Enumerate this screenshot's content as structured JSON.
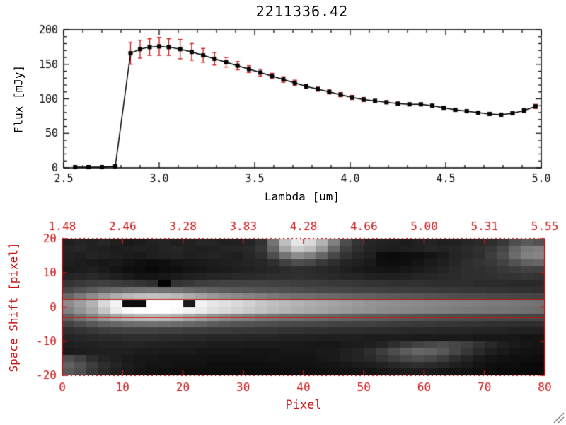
{
  "window": {
    "background": "#ffffff"
  },
  "colors": {
    "foreground": "#000000",
    "accent_red": "#cc1515",
    "grip_gray": "#8a8a8a"
  },
  "title": "2211336.42",
  "chart_data": [
    {
      "type": "line",
      "title": "2211336.42",
      "xlabel": "Lambda [um]",
      "ylabel": "Flux [mJy]",
      "xlim": [
        2.5,
        5.0
      ],
      "ylim": [
        0,
        200
      ],
      "xticks": [
        2.5,
        3.0,
        3.5,
        4.0,
        4.5,
        5.0
      ],
      "xtick_labels": [
        "2.5",
        "3.0",
        "3.5",
        "4.0",
        "4.5",
        "5.0"
      ],
      "xminor": 5,
      "yticks": [
        0,
        50,
        100,
        150,
        200
      ],
      "ytick_labels": [
        "0",
        "50",
        "100",
        "150",
        "200"
      ],
      "yminor": 5,
      "grid": false,
      "marker": "filled-square",
      "line_color": "#000000",
      "marker_color": "#000000",
      "error_color": "#cc1515",
      "x": [
        2.56,
        2.63,
        2.7,
        2.77,
        2.85,
        2.9,
        2.95,
        3.0,
        3.05,
        3.11,
        3.17,
        3.23,
        3.29,
        3.35,
        3.41,
        3.47,
        3.53,
        3.59,
        3.65,
        3.71,
        3.77,
        3.83,
        3.89,
        3.95,
        4.01,
        4.07,
        4.13,
        4.19,
        4.25,
        4.31,
        4.37,
        4.43,
        4.49,
        4.55,
        4.61,
        4.67,
        4.73,
        4.79,
        4.85,
        4.91,
        4.97
      ],
      "y": [
        1,
        1,
        1,
        2,
        166,
        172,
        175,
        176,
        175,
        172,
        168,
        163,
        158,
        153,
        148,
        143,
        138,
        133,
        128,
        123,
        118,
        114,
        110,
        106,
        102,
        99,
        97,
        95,
        93,
        92,
        92,
        90,
        87,
        84,
        82,
        80,
        78,
        77,
        79,
        83,
        89
      ],
      "yerr": [
        2,
        2,
        2,
        2,
        16,
        13,
        12,
        13,
        12,
        14,
        12,
        10,
        9,
        7,
        6,
        5,
        5,
        4,
        4,
        4,
        3,
        3,
        3,
        3,
        3,
        3,
        2,
        2,
        2,
        2,
        2,
        2,
        2,
        2,
        2,
        2,
        2,
        2,
        2,
        3,
        3
      ]
    },
    {
      "type": "heatmap",
      "xlabel": "Pixel",
      "ylabel": "Space Shift [pixel]",
      "xlim": [
        0,
        80
      ],
      "ylim": [
        -20,
        20
      ],
      "xticks": [
        0,
        10,
        20,
        30,
        40,
        50,
        60,
        70,
        80
      ],
      "xtick_labels": [
        "0",
        "10",
        "20",
        "30",
        "40",
        "50",
        "60",
        "70",
        "80"
      ],
      "yticks": [
        -20,
        -10,
        0,
        10,
        20
      ],
      "ytick_labels": [
        "-20",
        "-10",
        "0",
        "10",
        "20"
      ],
      "top_axis_labels": [
        "1.48",
        "2.46",
        "3.28",
        "3.83",
        "4.28",
        "4.66",
        "5.00",
        "5.31",
        "5.55"
      ],
      "axis_color": "#cc1515",
      "aperture_lines_y": [
        2.2,
        -3.0
      ],
      "palette": "grayscale",
      "value_range": [
        0,
        100
      ],
      "image_rows": 20,
      "image_cols": 40,
      "image": [
        [
          12,
          14,
          13,
          15,
          12,
          10,
          11,
          13,
          14,
          12,
          13,
          15,
          14,
          12,
          13,
          14,
          20,
          45,
          75,
          90,
          85,
          70,
          50,
          30,
          20,
          15,
          13,
          12,
          11,
          13,
          14,
          12,
          13,
          15,
          16,
          18,
          22,
          30,
          35,
          32
        ],
        [
          14,
          15,
          13,
          12,
          11,
          12,
          13,
          12,
          14,
          15,
          13,
          12,
          13,
          14,
          15,
          16,
          22,
          40,
          65,
          80,
          75,
          60,
          40,
          25,
          18,
          14,
          12,
          11,
          12,
          13,
          15,
          14,
          15,
          17,
          19,
          22,
          28,
          40,
          48,
          50
        ],
        [
          13,
          12,
          14,
          13,
          12,
          11,
          10,
          12,
          13,
          14,
          12,
          13,
          14,
          13,
          12,
          15,
          18,
          30,
          45,
          55,
          50,
          40,
          28,
          20,
          15,
          12,
          5,
          4,
          5,
          6,
          8,
          10,
          14,
          16,
          18,
          24,
          30,
          42,
          50,
          52
        ],
        [
          12,
          11,
          10,
          9,
          10,
          8,
          6,
          5,
          6,
          8,
          9,
          10,
          11,
          12,
          13,
          14,
          15,
          18,
          25,
          30,
          28,
          22,
          18,
          14,
          12,
          10,
          6,
          5,
          6,
          8,
          10,
          12,
          15,
          18,
          20,
          22,
          26,
          32,
          38,
          40
        ],
        [
          10,
          11,
          12,
          10,
          8,
          6,
          5,
          4,
          5,
          6,
          8,
          9,
          10,
          11,
          12,
          13,
          14,
          15,
          17,
          18,
          17,
          16,
          14,
          12,
          10,
          9,
          8,
          8,
          9,
          10,
          12,
          14,
          16,
          18,
          19,
          20,
          22,
          24,
          26,
          25
        ],
        [
          14,
          15,
          16,
          14,
          12,
          10,
          8,
          8,
          9,
          10,
          12,
          13,
          14,
          15,
          16,
          16,
          17,
          18,
          18,
          19,
          18,
          17,
          16,
          15,
          14,
          13,
          12,
          12,
          13,
          14,
          15,
          16,
          17,
          18,
          18,
          19,
          20,
          20,
          21,
          20
        ],
        [
          20,
          22,
          24,
          25,
          24,
          22,
          20,
          18,
          0,
          20,
          22,
          24,
          25,
          26,
          26,
          26,
          26,
          25,
          25,
          24,
          24,
          23,
          22,
          22,
          21,
          20,
          20,
          19,
          19,
          19,
          18,
          18,
          18,
          18,
          17,
          17,
          17,
          16,
          16,
          16
        ],
        [
          28,
          32,
          36,
          40,
          42,
          44,
          45,
          46,
          45,
          44,
          42,
          40,
          38,
          36,
          35,
          34,
          33,
          32,
          31,
          30,
          29,
          28,
          28,
          27,
          26,
          26,
          25,
          24,
          24,
          23,
          23,
          22,
          22,
          21,
          21,
          20,
          20,
          19,
          19,
          18
        ],
        [
          40,
          48,
          55,
          62,
          68,
          72,
          75,
          76,
          75,
          72,
          68,
          64,
          60,
          57,
          54,
          52,
          50,
          48,
          46,
          44,
          43,
          42,
          41,
          40,
          39,
          38,
          37,
          36,
          35,
          34,
          33,
          32,
          31,
          30,
          30,
          29,
          29,
          28,
          28,
          27
        ],
        [
          55,
          62,
          70,
          85,
          95,
          5,
          5,
          100,
          100,
          100,
          10,
          95,
          90,
          88,
          85,
          82,
          78,
          75,
          72,
          70,
          68,
          66,
          64,
          62,
          60,
          58,
          57,
          56,
          55,
          54,
          53,
          52,
          51,
          50,
          49,
          48,
          48,
          47,
          46,
          45
        ],
        [
          50,
          58,
          66,
          78,
          92,
          98,
          100,
          100,
          100,
          98,
          95,
          92,
          88,
          85,
          82,
          79,
          76,
          73,
          70,
          68,
          66,
          64,
          62,
          60,
          58,
          57,
          55,
          54,
          53,
          52,
          51,
          50,
          49,
          48,
          47,
          46,
          46,
          45,
          44,
          43
        ],
        [
          38,
          45,
          52,
          60,
          66,
          70,
          73,
          74,
          73,
          70,
          66,
          62,
          58,
          55,
          52,
          50,
          48,
          46,
          44,
          43,
          42,
          41,
          40,
          39,
          38,
          37,
          36,
          35,
          34,
          33,
          32,
          31,
          30,
          30,
          29,
          29,
          28,
          28,
          27,
          27
        ],
        [
          26,
          30,
          34,
          38,
          40,
          42,
          43,
          44,
          43,
          42,
          40,
          38,
          36,
          34,
          33,
          32,
          31,
          30,
          29,
          28,
          28,
          27,
          26,
          26,
          25,
          25,
          24,
          23,
          23,
          22,
          22,
          21,
          21,
          20,
          20,
          19,
          19,
          18,
          18,
          18
        ],
        [
          18,
          20,
          22,
          24,
          25,
          26,
          26,
          26,
          25,
          25,
          24,
          24,
          23,
          23,
          22,
          22,
          21,
          21,
          20,
          20,
          19,
          19,
          18,
          18,
          18,
          17,
          17,
          17,
          16,
          16,
          16,
          15,
          15,
          15,
          14,
          14,
          14,
          13,
          13,
          13
        ],
        [
          14,
          15,
          16,
          17,
          17,
          18,
          18,
          18,
          17,
          17,
          16,
          16,
          15,
          15,
          15,
          14,
          14,
          14,
          13,
          13,
          13,
          12,
          12,
          12,
          12,
          11,
          11,
          11,
          11,
          10,
          10,
          10,
          10,
          10,
          9,
          9,
          9,
          9,
          8,
          8
        ],
        [
          12,
          13,
          13,
          14,
          14,
          14,
          14,
          13,
          13,
          12,
          12,
          12,
          11,
          11,
          11,
          10,
          10,
          10,
          10,
          10,
          9,
          9,
          9,
          10,
          11,
          12,
          14,
          18,
          22,
          26,
          28,
          30,
          28,
          25,
          20,
          16,
          12,
          10,
          9,
          8
        ],
        [
          10,
          11,
          12,
          12,
          12,
          12,
          11,
          11,
          10,
          10,
          10,
          9,
          9,
          9,
          9,
          8,
          8,
          8,
          9,
          9,
          9,
          10,
          10,
          12,
          14,
          18,
          24,
          30,
          36,
          40,
          38,
          34,
          28,
          22,
          16,
          12,
          10,
          8,
          7,
          7
        ],
        [
          30,
          25,
          18,
          14,
          12,
          10,
          9,
          9,
          8,
          8,
          8,
          8,
          7,
          7,
          7,
          7,
          7,
          8,
          8,
          8,
          8,
          9,
          10,
          12,
          14,
          16,
          20,
          24,
          28,
          30,
          28,
          24,
          18,
          14,
          10,
          8,
          7,
          6,
          6,
          5
        ],
        [
          38,
          32,
          24,
          18,
          14,
          11,
          9,
          8,
          8,
          7,
          7,
          7,
          6,
          6,
          6,
          6,
          6,
          6,
          7,
          7,
          7,
          8,
          8,
          9,
          10,
          11,
          13,
          15,
          17,
          18,
          17,
          15,
          12,
          10,
          8,
          6,
          5,
          5,
          4,
          4
        ],
        [
          35,
          30,
          22,
          16,
          12,
          10,
          8,
          7,
          6,
          6,
          5,
          5,
          5,
          5,
          5,
          5,
          5,
          5,
          5,
          6,
          6,
          6,
          7,
          7,
          8,
          8,
          9,
          10,
          11,
          11,
          10,
          9,
          8,
          7,
          6,
          5,
          4,
          4,
          3,
          3
        ]
      ]
    }
  ]
}
